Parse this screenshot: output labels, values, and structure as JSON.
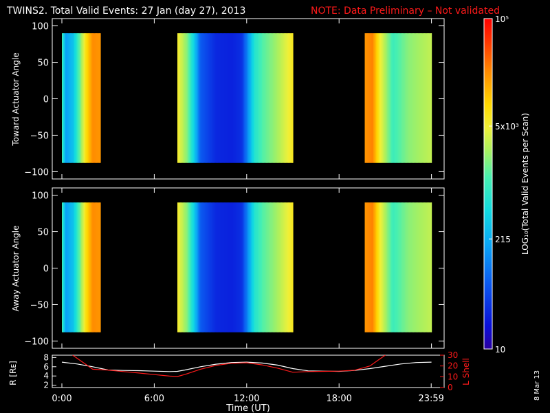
{
  "header": {
    "title": "TWINS2. Total Valid Events: 27 Jan (day  27), 2013",
    "note": "NOTE: Data Preliminary – Not validated"
  },
  "date_stamp": "8 Mar 13",
  "colors": {
    "background": "#000000",
    "axes": "#ffffff",
    "note": "#ff1a1a",
    "l_shell": "#ff1a1a",
    "r_curve": "#ffffff"
  },
  "chart_data": [
    {
      "type": "heatmap",
      "name": "toward",
      "ylabel": "Toward Actuator Angle",
      "ylim": [
        -110,
        110
      ],
      "yticks": [
        100,
        50,
        0,
        -50,
        -100
      ],
      "ytick_labels": [
        "100",
        "50",
        "0",
        "−50",
        "−100"
      ],
      "angle_range": [
        -88,
        90
      ],
      "xlim_hours": [
        0,
        24
      ],
      "log10_colors": true,
      "data_segments": [
        {
          "start": "00:00",
          "end": "02:30",
          "profile": [
            {
              "t": "00:00",
              "log10": 3.1
            },
            {
              "t": "00:15",
              "log10": 2.2
            },
            {
              "t": "00:45",
              "log10": 2.5
            },
            {
              "t": "01:10",
              "log10": 3.2
            },
            {
              "t": "01:35",
              "log10": 3.9
            },
            {
              "t": "02:00",
              "log10": 4.35
            },
            {
              "t": "02:30",
              "log10": 4.3
            }
          ]
        },
        {
          "start": "07:30",
          "end": "15:00",
          "profile": [
            {
              "t": "07:30",
              "log10": 3.75
            },
            {
              "t": "07:45",
              "log10": 3.55
            },
            {
              "t": "08:10",
              "log10": 3.25
            },
            {
              "t": "08:40",
              "log10": 2.45
            },
            {
              "t": "09:00",
              "log10": 1.8
            },
            {
              "t": "10:00",
              "log10": 1.45
            },
            {
              "t": "11:00",
              "log10": 1.4
            },
            {
              "t": "11:40",
              "log10": 1.5
            },
            {
              "t": "12:00",
              "log10": 2.0
            },
            {
              "t": "12:30",
              "log10": 2.8
            },
            {
              "t": "13:00",
              "log10": 3.1
            },
            {
              "t": "14:00",
              "log10": 3.4
            },
            {
              "t": "15:00",
              "log10": 3.8
            }
          ]
        },
        {
          "start": "19:40",
          "end": "24:00",
          "profile": [
            {
              "t": "19:40",
              "log10": 4.3
            },
            {
              "t": "20:10",
              "log10": 4.4
            },
            {
              "t": "20:40",
              "log10": 3.7
            },
            {
              "t": "21:30",
              "log10": 3.0
            },
            {
              "t": "22:30",
              "log10": 3.3
            },
            {
              "t": "24:00",
              "log10": 3.5
            }
          ]
        }
      ]
    },
    {
      "type": "heatmap",
      "name": "away",
      "ylabel": "Away Actuator Angle",
      "ylim": [
        -110,
        110
      ],
      "yticks": [
        100,
        50,
        0,
        -50,
        -100
      ],
      "ytick_labels": [
        "100",
        "50",
        "0",
        "−50",
        "−100"
      ],
      "angle_range": [
        -88,
        90
      ],
      "xlim_hours": [
        0,
        24
      ],
      "log10_colors": true,
      "data_segments": [
        {
          "start": "00:00",
          "end": "02:30",
          "profile": [
            {
              "t": "00:00",
              "log10": 3.1
            },
            {
              "t": "00:15",
              "log10": 2.2
            },
            {
              "t": "00:45",
              "log10": 2.5
            },
            {
              "t": "01:10",
              "log10": 3.2
            },
            {
              "t": "01:35",
              "log10": 3.9
            },
            {
              "t": "02:00",
              "log10": 4.35
            },
            {
              "t": "02:30",
              "log10": 4.3
            }
          ]
        },
        {
          "start": "07:30",
          "end": "15:00",
          "profile": [
            {
              "t": "07:30",
              "log10": 3.75
            },
            {
              "t": "07:45",
              "log10": 3.55
            },
            {
              "t": "08:10",
              "log10": 3.25
            },
            {
              "t": "08:40",
              "log10": 2.45
            },
            {
              "t": "09:00",
              "log10": 1.8
            },
            {
              "t": "10:00",
              "log10": 1.45
            },
            {
              "t": "11:00",
              "log10": 1.4
            },
            {
              "t": "11:40",
              "log10": 1.5
            },
            {
              "t": "12:00",
              "log10": 2.0
            },
            {
              "t": "12:30",
              "log10": 2.8
            },
            {
              "t": "13:00",
              "log10": 3.1
            },
            {
              "t": "14:00",
              "log10": 3.4
            },
            {
              "t": "15:00",
              "log10": 3.8
            }
          ]
        },
        {
          "start": "19:40",
          "end": "24:00",
          "profile": [
            {
              "t": "19:40",
              "log10": 4.3
            },
            {
              "t": "20:10",
              "log10": 4.4
            },
            {
              "t": "20:40",
              "log10": 3.7
            },
            {
              "t": "21:30",
              "log10": 3.0
            },
            {
              "t": "22:30",
              "log10": 3.3
            },
            {
              "t": "24:00",
              "log10": 3.5
            }
          ]
        }
      ]
    },
    {
      "type": "line",
      "name": "orbit",
      "ylabel_left": "R [Rᴇ]",
      "ylabel_right": "L Shell",
      "ylim_left": [
        1.5,
        8.5
      ],
      "yticks_left": [
        8,
        6,
        4,
        2
      ],
      "ylim_right": [
        0,
        30
      ],
      "yticks_right": [
        30,
        20,
        10,
        0
      ],
      "xlabel": "Time (UT)",
      "xticks": [
        0,
        6,
        12,
        18,
        23.983
      ],
      "xtick_labels": [
        "0:00",
        "6:00",
        "12:00",
        "18:00",
        "23:59"
      ],
      "series": [
        {
          "axis": "left",
          "x": [
            0,
            1,
            2,
            3,
            4,
            5,
            6,
            7,
            7.5,
            8,
            9,
            10,
            11,
            12,
            13,
            14,
            15,
            16,
            17,
            18,
            19,
            20,
            21,
            22,
            23,
            24
          ],
          "y": [
            7.0,
            6.6,
            6.0,
            5.3,
            5.2,
            5.15,
            5.05,
            4.95,
            5.0,
            5.3,
            6.0,
            6.55,
            6.9,
            7.0,
            6.8,
            6.35,
            5.6,
            5.1,
            5.05,
            5.0,
            5.2,
            5.6,
            6.1,
            6.6,
            6.9,
            7.0
          ]
        },
        {
          "axis": "right",
          "x": [
            0.7,
            1.3,
            2.0,
            3.0,
            4.0,
            5.0,
            6.0,
            7.0,
            7.5,
            8.0,
            9.0,
            10.0,
            11.0,
            12.0,
            13.0,
            14.0,
            15.0,
            16.0,
            17.0,
            18.0,
            19.0,
            20.0,
            20.5,
            21.0
          ],
          "y": [
            30,
            24,
            17,
            16.2,
            14.8,
            13.5,
            12.0,
            10.6,
            10.2,
            12.2,
            17.0,
            20.5,
            22.5,
            23.0,
            21.0,
            18.0,
            14.2,
            14.8,
            15.0,
            15.2,
            16.0,
            20.0,
            25.0,
            30
          ]
        }
      ]
    }
  ],
  "colorbar": {
    "title": "LOG₁₀(Total Valid Events per Scan)",
    "log10_range": [
      1,
      5
    ],
    "ticks": [
      {
        "label": "10⁵",
        "log10": 5
      },
      {
        "label": "5x10³",
        "log10": 3.699
      },
      {
        "label": "215",
        "log10": 2.332
      },
      {
        "label": "10",
        "log10": 1
      }
    ]
  }
}
